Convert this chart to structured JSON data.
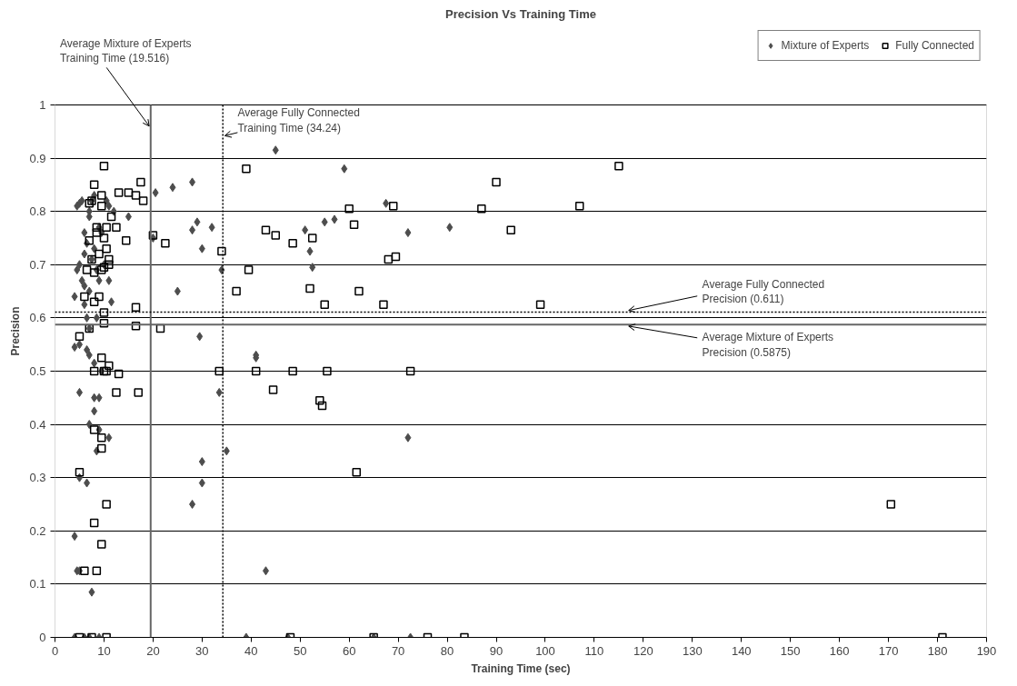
{
  "chart_data": {
    "type": "scatter",
    "title": "Precision Vs Training Time",
    "xlabel": "Training Time (sec)",
    "ylabel": "Precision",
    "xlim": [
      0,
      190
    ],
    "xticks": [
      0,
      10,
      20,
      30,
      40,
      50,
      60,
      70,
      80,
      90,
      100,
      110,
      120,
      130,
      140,
      150,
      160,
      170,
      180,
      190
    ],
    "ylim": [
      0,
      1
    ],
    "yticks": [
      0,
      0.1,
      0.2,
      0.3,
      0.4,
      0.5,
      0.6,
      0.7,
      0.8,
      0.9,
      1
    ],
    "grid": "y",
    "legend": "top right",
    "series": [
      {
        "name": "Mixture of Experts",
        "color": "#4d4d4d",
        "marker": "diamond",
        "x": [
          4,
          4.5,
          4.5,
          5,
          5,
          5.5,
          5.5,
          6,
          6,
          6,
          6.5,
          6.5,
          7,
          7,
          7,
          7.5,
          7.5,
          8,
          8,
          8.5,
          9,
          9,
          9.5,
          10,
          10.5,
          11,
          11,
          11.5,
          12,
          6,
          7,
          8.5,
          6.5,
          4,
          5,
          7,
          8,
          9.5,
          5,
          8,
          9,
          8,
          7,
          9,
          8.5,
          11,
          5,
          6.5,
          4,
          4.5,
          5,
          7.5,
          4,
          6,
          7,
          9,
          15,
          20.5,
          24,
          28,
          20,
          25,
          28,
          29,
          30,
          32,
          34,
          29.5,
          30,
          30,
          28,
          33.5,
          35,
          45,
          59,
          67.5,
          80.5,
          72,
          51,
          52,
          52.5,
          55,
          57,
          41,
          41,
          72,
          43,
          39,
          47.5,
          65,
          72.5
        ],
        "values": [
          0.64,
          0.69,
          0.81,
          0.815,
          0.7,
          0.82,
          0.67,
          0.66,
          0.76,
          0.72,
          0.6,
          0.74,
          0.8,
          0.79,
          0.65,
          0.71,
          0.82,
          0.83,
          0.73,
          0.69,
          0.77,
          0.67,
          0.76,
          0.7,
          0.82,
          0.81,
          0.67,
          0.63,
          0.8,
          0.625,
          0.58,
          0.6,
          0.54,
          0.545,
          0.55,
          0.53,
          0.515,
          0.5,
          0.46,
          0.45,
          0.45,
          0.425,
          0.4,
          0.39,
          0.35,
          0.375,
          0.3,
          0.29,
          0.19,
          0.125,
          0.125,
          0.085,
          0,
          0,
          0,
          0,
          0.79,
          0.835,
          0.845,
          0.855,
          0.75,
          0.65,
          0.765,
          0.78,
          0.73,
          0.77,
          0.69,
          0.565,
          0.33,
          0.29,
          0.25,
          0.46,
          0.35,
          0.915,
          0.88,
          0.815,
          0.77,
          0.76,
          0.765,
          0.725,
          0.695,
          0.78,
          0.785,
          0.525,
          0.53,
          0.375,
          0.125,
          0,
          0,
          0,
          0
        ]
      },
      {
        "name": "Fully Connected",
        "color": "#000000",
        "marker": "square",
        "x": [
          10,
          8,
          9.5,
          7.5,
          9.5,
          7,
          13,
          15,
          16.5,
          17.5,
          18,
          8.5,
          8.5,
          10.5,
          11.5,
          12.5,
          14.5,
          10,
          10.5,
          11,
          11,
          7,
          7.5,
          9,
          9.5,
          6.5,
          8,
          10,
          16.5,
          9,
          6,
          8,
          10,
          7,
          10,
          16.5,
          20,
          22.5,
          21.5,
          5,
          9.5,
          8,
          10,
          10.5,
          11,
          13,
          12.5,
          17,
          8,
          9.5,
          9.5,
          5,
          10.5,
          8,
          9.5,
          6,
          8.5,
          5,
          7.5,
          10.5,
          39,
          34,
          37,
          39.5,
          43,
          45,
          48.5,
          52.5,
          52,
          55,
          60,
          61,
          62,
          67,
          68,
          69.5,
          69,
          87,
          90,
          93,
          99,
          107,
          115,
          33.5,
          41,
          44.5,
          48.5,
          54,
          54.5,
          55.5,
          61.5,
          72.5,
          170.5,
          48,
          65,
          76,
          83.5,
          181
        ],
        "values": [
          0.885,
          0.85,
          0.83,
          0.82,
          0.81,
          0.815,
          0.835,
          0.835,
          0.83,
          0.855,
          0.82,
          0.77,
          0.76,
          0.77,
          0.79,
          0.77,
          0.745,
          0.75,
          0.73,
          0.71,
          0.7,
          0.745,
          0.71,
          0.72,
          0.69,
          0.69,
          0.685,
          0.695,
          0.62,
          0.64,
          0.64,
          0.63,
          0.61,
          0.58,
          0.59,
          0.585,
          0.755,
          0.74,
          0.58,
          0.565,
          0.525,
          0.5,
          0.5,
          0.5,
          0.51,
          0.495,
          0.46,
          0.46,
          0.39,
          0.375,
          0.355,
          0.31,
          0.25,
          0.215,
          0.175,
          0.125,
          0.125,
          0,
          0,
          0,
          0.88,
          0.725,
          0.65,
          0.69,
          0.765,
          0.755,
          0.74,
          0.75,
          0.655,
          0.625,
          0.805,
          0.775,
          0.65,
          0.625,
          0.71,
          0.715,
          0.81,
          0.805,
          0.855,
          0.765,
          0.625,
          0.81,
          0.885,
          0.5,
          0.5,
          0.465,
          0.5,
          0.445,
          0.435,
          0.5,
          0.31,
          0.5,
          0.25,
          0,
          0,
          0,
          0,
          0
        ]
      }
    ],
    "ref_lines": [
      {
        "axis": "x",
        "value": 19.516,
        "label": "Average Mixture of Experts\nTraining Time (19.516)",
        "color": "#666666",
        "line_style": "solid"
      },
      {
        "axis": "x",
        "value": 34.24,
        "label": "Average Fully Connected\nTraining Time (34.24)",
        "color": "#000000",
        "line_style": "dotted"
      },
      {
        "axis": "y",
        "value": 0.611,
        "label": "Average Fully Connected\nPrecision (0.611)",
        "color": "#000000",
        "line_style": "dotted"
      },
      {
        "axis": "y",
        "value": 0.5875,
        "label": "Average Mixture of Experts\nPrecision (0.5875)",
        "color": "#666666",
        "line_style": "solid"
      }
    ]
  }
}
